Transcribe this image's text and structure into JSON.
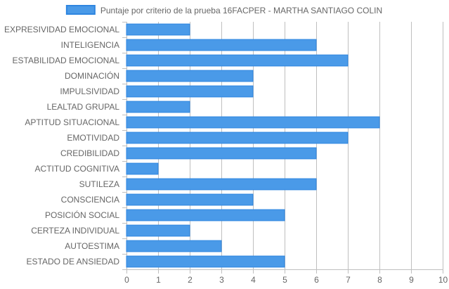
{
  "chart_data": {
    "type": "bar",
    "orientation": "horizontal",
    "categories": [
      "EXPRESIVIDAD EMOCIONAL",
      "INTELIGENCIA",
      "ESTABILIDAD EMOCIONAL",
      "DOMINACIÓN",
      "IMPULSIVIDAD",
      "LEALTAD GRUPAL",
      "APTITUD SITUACIONAL",
      "EMOTIVIDAD",
      "CREDIBILIDAD",
      "ACTITUD COGNITIVA",
      "SUTILEZA",
      "CONSCIENCIA",
      "POSICIÓN SOCIAL",
      "CERTEZA INDIVIDUAL",
      "AUTOESTIMA",
      "ESTADO DE ANSIEDAD"
    ],
    "series": [
      {
        "name": "Puntaje por criterio de la prueba 16FACPER - MARTHA SANTIAGO COLIN",
        "values": [
          2,
          6,
          7,
          4,
          4,
          2,
          8,
          7,
          6,
          1,
          6,
          4,
          5,
          2,
          3,
          5
        ],
        "color": "#4a9ae8",
        "border_color": "#2f86e0"
      }
    ],
    "xlim": [
      0,
      10
    ],
    "x_ticks": [
      "0",
      "1",
      "2",
      "3",
      "4",
      "5",
      "6",
      "7",
      "8",
      "9",
      "10"
    ],
    "grid": true,
    "legend_position": "top"
  },
  "colors": {
    "grid": "#bfbfbf",
    "label": "#666666"
  }
}
